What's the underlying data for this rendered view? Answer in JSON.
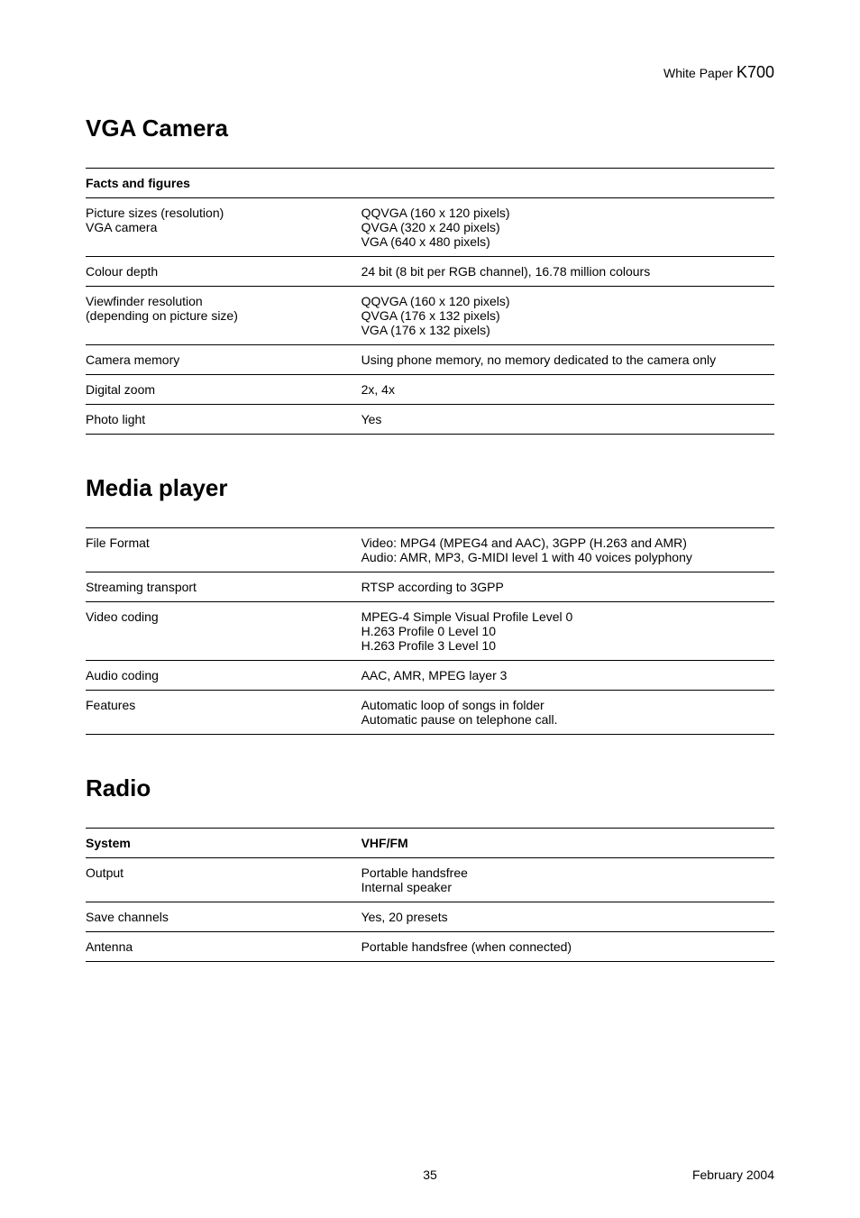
{
  "header": {
    "thin": "White Paper ",
    "model": "K700"
  },
  "sections": [
    {
      "title": "VGA Camera",
      "header_row": [
        "Facts and figures",
        ""
      ],
      "rows": [
        [
          "Picture sizes (resolution)\nVGA camera",
          "QQVGA (160 x 120 pixels)\nQVGA (320 x 240 pixels)\nVGA (640 x 480 pixels)"
        ],
        [
          "Colour depth",
          "24 bit (8 bit per RGB channel), 16.78 million colours"
        ],
        [
          "Viewfinder resolution\n(depending on picture size)",
          "QQVGA (160 x 120 pixels)\nQVGA (176 x 132 pixels)\nVGA (176 x 132 pixels)"
        ],
        [
          "Camera memory",
          "Using phone memory, no memory dedicated to the camera only"
        ],
        [
          "Digital zoom",
          "2x, 4x"
        ],
        [
          "Photo light",
          "Yes"
        ]
      ]
    },
    {
      "title": "Media player",
      "rows": [
        [
          "File Format",
          "Video: MPG4 (MPEG4 and AAC), 3GPP (H.263 and AMR)\nAudio: AMR, MP3, G-MIDI level 1 with 40 voices polyphony"
        ],
        [
          "Streaming transport",
          "RTSP according to 3GPP"
        ],
        [
          "Video coding",
          "MPEG-4 Simple Visual Profile Level 0\nH.263 Profile 0 Level 10\nH.263 Profile 3 Level 10"
        ],
        [
          "Audio coding",
          "AAC, AMR, MPEG layer 3"
        ],
        [
          "Features",
          "Automatic loop of songs in folder\nAutomatic pause on telephone call."
        ]
      ]
    },
    {
      "title": "Radio",
      "header_row": [
        "System",
        "VHF/FM"
      ],
      "rows": [
        [
          "Output",
          "Portable handsfree\nInternal speaker"
        ],
        [
          "Save channels",
          "Yes, 20 presets"
        ],
        [
          "Antenna",
          "Portable handsfree (when connected)"
        ]
      ]
    }
  ],
  "footer": {
    "page": "35",
    "date": "February 2004"
  }
}
